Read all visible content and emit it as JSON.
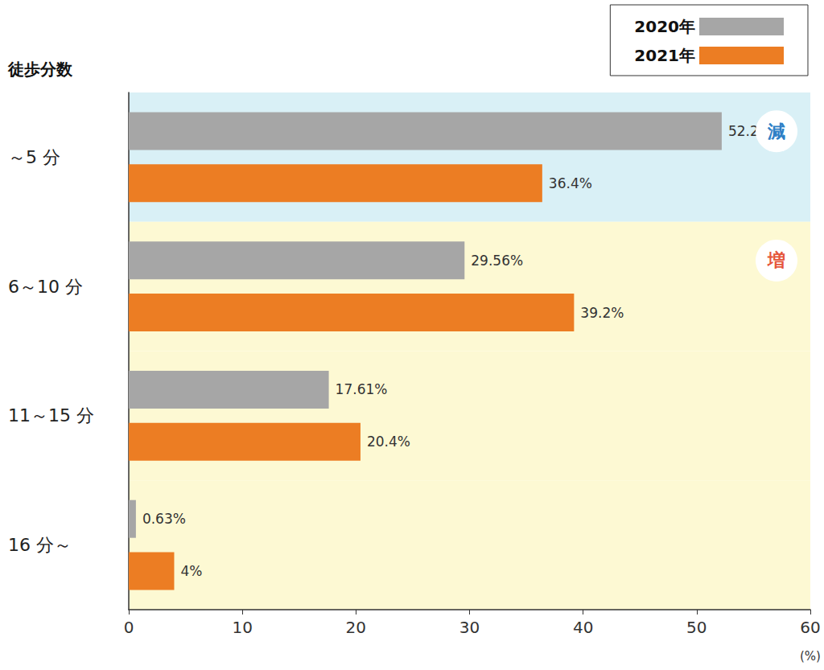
{
  "chart_data": {
    "type": "bar",
    "orientation": "horizontal",
    "y_label": "徒歩分数",
    "x_label": "(%)",
    "categories": [
      "～5 分",
      "6～10 分",
      "11～15 分",
      "16 分～"
    ],
    "series": [
      {
        "name": "2020年",
        "color": "#a6a6a6",
        "values": [
          52.2,
          29.56,
          17.61,
          0.63
        ],
        "value_labels": [
          "52.2%",
          "29.56%",
          "17.61%",
          "0.63%"
        ]
      },
      {
        "name": "2021年",
        "color": "#ec7d23",
        "values": [
          36.4,
          39.2,
          20.4,
          4
        ],
        "value_labels": [
          "36.4%",
          "39.2%",
          "20.4%",
          "4%"
        ]
      }
    ],
    "xlim": [
      0,
      60
    ],
    "xticks": [
      0,
      10,
      20,
      30,
      40,
      50,
      60
    ],
    "grid": false,
    "legend": "top-right",
    "data_labels": true,
    "annotations": [
      {
        "text": "減",
        "category": "～5 分"
      },
      {
        "text": "増",
        "category": "6～10 分"
      }
    ]
  }
}
